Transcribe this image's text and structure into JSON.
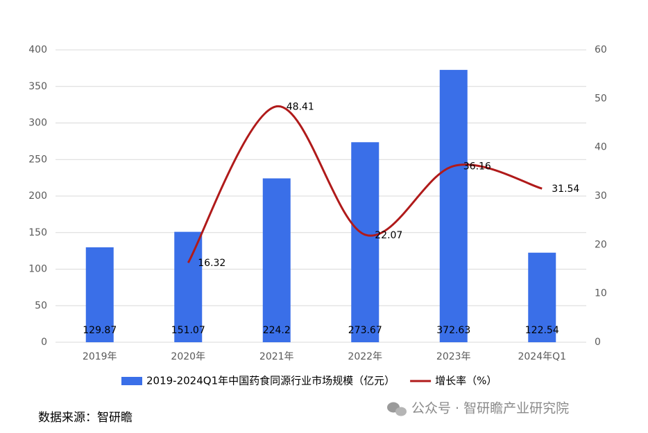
{
  "chart_data": {
    "type": "bar",
    "categories": [
      "2019年",
      "2020年",
      "2021年",
      "2022年",
      "2023年",
      "2024年Q1"
    ],
    "series": [
      {
        "name": "2019-2024Q1年中国药食同源行业市场规模（亿元）",
        "type": "bar",
        "color": "#3a6fe8",
        "values": [
          129.87,
          151.07,
          224.2,
          273.67,
          372.63,
          122.54
        ]
      },
      {
        "name": "增长率（%）",
        "type": "line",
        "axis": "y2",
        "color": "#b01a1a",
        "values": [
          null,
          16.32,
          48.41,
          22.07,
          36.16,
          31.54
        ]
      }
    ],
    "ylim": [
      0,
      400
    ],
    "yticks": [
      0,
      50,
      100,
      150,
      200,
      250,
      300,
      350,
      400
    ],
    "y2lim": [
      0,
      60
    ],
    "y2ticks": [
      0,
      10,
      20,
      30,
      40,
      50,
      60
    ],
    "grid": true,
    "legend": "bottom",
    "source": "数据来源：智研瞻",
    "watermark": "公众号 · 智研瞻产业研究院"
  }
}
